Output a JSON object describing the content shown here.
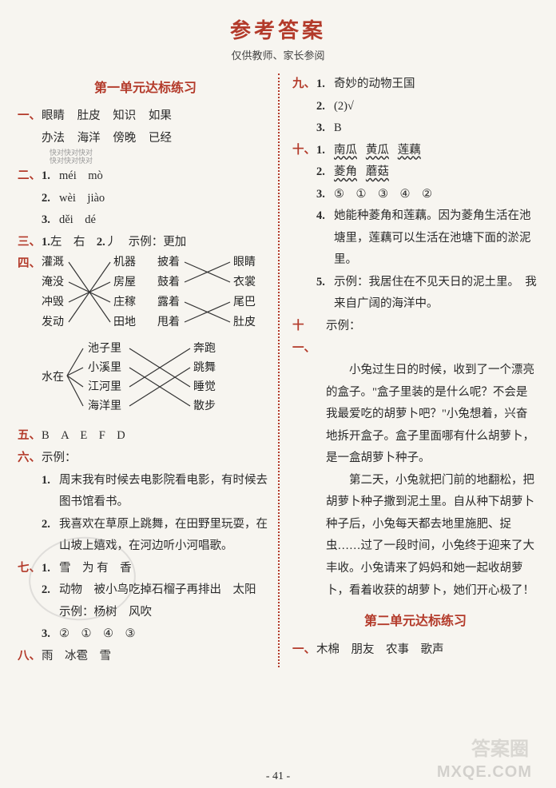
{
  "page": {
    "title": "参考答案",
    "subtitle": "仅供教师、家长参阅",
    "pagenum": "- 41 -",
    "watermark_small": "MXQE.COM",
    "watermark_big": "答案圈"
  },
  "unit1": {
    "header": "第一单元达标练习",
    "q1": {
      "num": "一、",
      "line1": [
        "眼睛",
        "肚皮",
        "知识",
        "如果"
      ],
      "line2": [
        "办法",
        "海洋",
        "傍晚",
        "已经"
      ],
      "note1": "快对快对快对",
      "note2": "快对快对快对"
    },
    "q2": {
      "num": "二、",
      "items": [
        {
          "n": "1.",
          "t": "méi　mò"
        },
        {
          "n": "2.",
          "t": "wèi　jiào"
        },
        {
          "n": "3.",
          "t": "děi　dé"
        }
      ]
    },
    "q3": {
      "num": "三、",
      "sub1n": "1.",
      "sub1t": "左　右",
      "sub2n": "2.",
      "sub2t": "丿　示例：更加"
    },
    "q4": {
      "num": "四、"
    },
    "match1": {
      "left": [
        "灌溉",
        "淹没",
        "冲毁",
        "发动"
      ],
      "mid": [
        "机器",
        "房屋",
        "庄稼",
        "田地"
      ],
      "midR": [
        "披着",
        "鼓着",
        "露着",
        "甩着"
      ],
      "right": [
        "眼睛",
        "衣裳",
        "尾巴",
        "肚皮"
      ]
    },
    "match2": {
      "leftLabel": "水在",
      "left": [
        "池子里",
        "小溪里",
        "江河里",
        "海洋里"
      ],
      "right": [
        "奔跑",
        "跳舞",
        "睡觉",
        "散步"
      ]
    },
    "q5": {
      "num": "五、",
      "t": "B　A　E　F　D"
    },
    "q6": {
      "num": "六、",
      "lead": "示例：",
      "items": [
        {
          "n": "1.",
          "t": "周末我有时候去电影院看电影，有时候去图书馆看书。"
        },
        {
          "n": "2.",
          "t": "我喜欢在草原上跳舞，在田野里玩耍，在山坡上嬉戏，在河边听小河唱歌。"
        }
      ]
    },
    "q7": {
      "num": "七、",
      "items": [
        {
          "n": "1.",
          "t": "雪　为 有　香"
        },
        {
          "n": "2.",
          "t": "动物　被小鸟吃掉石榴子再排出　太阳　示例：杨树　风吹"
        },
        {
          "n": "3.",
          "t": "②　①　④　③"
        }
      ]
    },
    "q8": {
      "num": "八、",
      "t": "雨　冰雹　雪"
    },
    "q9": {
      "num": "九、",
      "items": [
        {
          "n": "1.",
          "t": "奇妙的动物王国"
        },
        {
          "n": "2.",
          "t": "(2)√"
        },
        {
          "n": "3.",
          "t": "B"
        }
      ]
    },
    "q10": {
      "num": "十、",
      "i1n": "1.",
      "i1a": "南瓜",
      "i1b": "黄瓜",
      "i1c": "莲藕",
      "i2n": "2.",
      "i2a": "菱角",
      "i2b": "蘑菇",
      "i3n": "3.",
      "i3t": "⑤　①　③　④　②",
      "i4n": "4.",
      "i4t": "她能种菱角和莲藕。因为菱角生活在池塘里，莲藕可以生活在池塘下面的淤泥里。",
      "i5n": "5.",
      "i5t": "示例：我居住在不见天日的泥土里。　我来自广阔的海洋中。"
    },
    "q11": {
      "num": "十一、",
      "lead": "示例：",
      "p1": "小兔过生日的时候，收到了一个漂亮的盒子。\"盒子里装的是什么呢？不会是我最爱吃的胡萝卜吧？\"小兔想着，兴奋地拆开盒子。盒子里面哪有什么胡萝卜，是一盒胡萝卜种子。",
      "p2": "第二天，小兔就把门前的地翻松，把胡萝卜种子撒到泥土里。自从种下胡萝卜种子后，小兔每天都去地里施肥、捉虫……过了一段时间，小兔终于迎来了大丰收。小兔请来了妈妈和她一起收胡萝卜，看着收获的胡萝卜，她们开心极了！"
    }
  },
  "unit2": {
    "header": "第二单元达标练习",
    "q1": {
      "num": "一、",
      "t": "木棉　朋友　农事　歌声"
    }
  },
  "svg": {
    "stroke": "#333333",
    "strokeWidth": 1.2,
    "fontSize": 14
  }
}
